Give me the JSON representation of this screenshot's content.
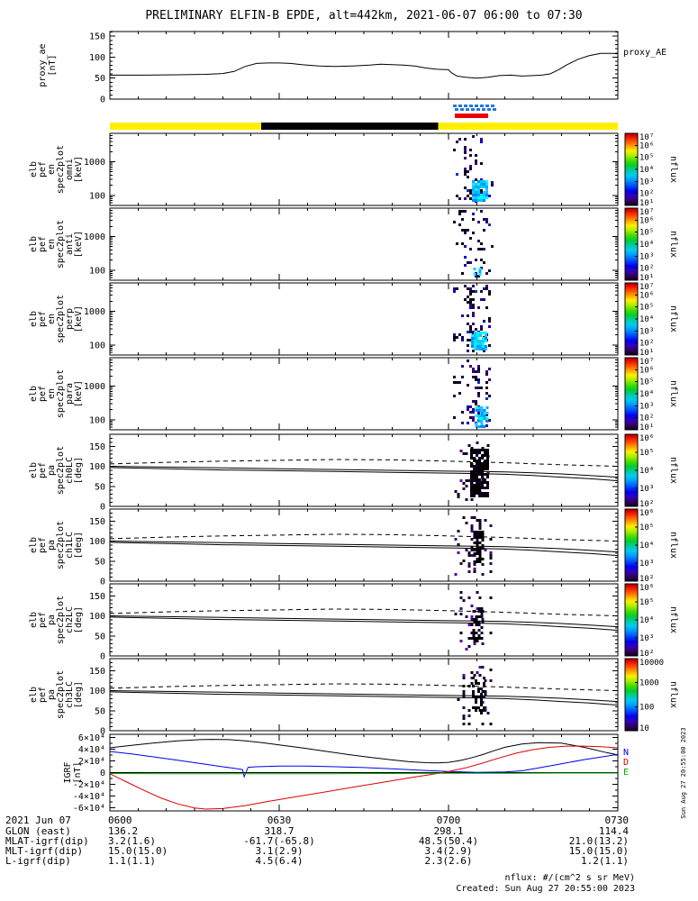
{
  "title": "PRELIMINARY ELFIN-B EPDE, alt=442km, 2021-06-07 06:00 to 07:30",
  "footer": {
    "nflux_units": "nflux: #/(cm^2 s sr MeV)",
    "created": "Created: Sun Aug 27 20:55:00 2023",
    "side_timestamp": "Sun Aug 27 20:55:00 2023"
  },
  "time_axis": {
    "total_minutes": 90,
    "minor_step_minutes": 5,
    "tick_minutes": [
      0,
      30,
      60,
      90
    ],
    "tick_labels": [
      "0600",
      "0630",
      "0700",
      "0730"
    ]
  },
  "bottom_table": {
    "row_labels": [
      "2021 Jun 07",
      "GLON (east)",
      "MLAT-igrf(dip)",
      "MLT-igrf(dip)",
      "L-igrf(dip)"
    ],
    "rows": [
      [
        "0600",
        "0630",
        "0700",
        "0730"
      ],
      [
        "136.2",
        "318.7",
        "298.1",
        "114.4"
      ],
      [
        "3.2(1.6)",
        "-61.7(-65.8)",
        "48.5(50.4)",
        "21.0(13.2)"
      ],
      [
        "15.0(15.0)",
        "3.1(2.9)",
        "3.4(2.9)",
        "15.0(15.0)"
      ],
      [
        "1.1(1.1)",
        "4.5(6.4)",
        "2.3(2.6)",
        "1.2(1.1)"
      ]
    ]
  },
  "chart_data": {
    "type": "multi-panel time-series and spectrogram stack (satellite particle data)",
    "palettes": {
      "spec_dark": [
        "#000000",
        "#16003a",
        "#24005c",
        "#32007e",
        "#0d0024",
        "#000030",
        "#3a0070",
        "#1c0048"
      ],
      "spec_blue": [
        "#0000cc",
        "#2200aa",
        "#0033bb"
      ],
      "spec_bright": [
        "#00ccff",
        "#00aaff",
        "#0088ff",
        "#00eeff",
        "#00ffee",
        "#33bbff"
      ],
      "pa_dark": [
        "#000000",
        "#0a0018",
        "#140030",
        "#1e0040",
        "#280055",
        "#000000",
        "#10002a"
      ],
      "pa_purple": [
        "#44008a",
        "#5a00aa",
        "#6600bb"
      ]
    },
    "proxy_panel": {
      "type": "line",
      "ylabel_lines": [
        "proxy_ae",
        "[nT]"
      ],
      "right_label": "proxy_AE",
      "ylim": [
        0,
        161
      ],
      "yticks": [
        0,
        50,
        100,
        150
      ],
      "series": {
        "x_min": [
          0,
          6,
          12,
          17,
          20,
          22,
          24,
          26,
          28,
          30,
          32,
          34,
          37,
          40,
          43,
          46,
          48,
          50,
          52,
          54,
          56,
          58,
          60,
          60.5,
          61.5,
          63,
          65,
          67,
          69,
          71,
          73,
          75,
          76.5,
          78,
          79.5,
          81,
          83,
          85,
          87,
          89,
          90
        ],
        "y_nT": [
          57,
          57,
          58,
          59,
          61,
          66,
          78,
          85,
          86,
          86,
          85,
          82,
          79,
          78,
          79,
          81,
          83,
          82,
          81,
          79,
          74,
          71,
          70,
          63,
          55,
          52,
          50,
          52,
          56,
          57,
          55,
          56,
          57,
          60,
          70,
          82,
          95,
          104,
          109,
          109,
          108
        ]
      }
    },
    "marker_bars": {
      "colors": {
        "yellow": "#ffee00",
        "black": "#000000",
        "red": "#ee0000",
        "blue": "#2277dd"
      },
      "science_zone_blue": {
        "x_min": [
          60.8,
          68.0
        ]
      },
      "red_bar": {
        "x_min": [
          61.1,
          67.0
        ]
      },
      "position_bar": {
        "yellow_x_min": [
          0,
          90
        ],
        "black_x_min": [
          26.8,
          58.2
        ]
      }
    },
    "energy_spectrograms": [
      {
        "id": "omni",
        "label_lines": [
          "elb",
          "pef",
          "en",
          "spec2plot",
          "omni",
          "[keV]"
        ],
        "yscale": "log",
        "ylim_keV": [
          50,
          7000
        ],
        "ytick_values": [
          100,
          1000
        ],
        "colorbar": {
          "labels": [
            "10^7",
            "10^6",
            "10^5",
            "10^4",
            "10^3",
            "10^2",
            "10^1"
          ],
          "unit": "nflux"
        },
        "burst": {
          "x_min": [
            60.8,
            67.8
          ],
          "seed": 11,
          "density": 0.45,
          "bright": {
            "center_min": 65.4,
            "half": 8,
            "from": 28,
            "to": 5,
            "density": 0.85
          }
        }
      },
      {
        "id": "anti",
        "label_lines": [
          "elb",
          "pef",
          "en",
          "spec2plot",
          "anti",
          "[keV]"
        ],
        "yscale": "log",
        "ylim_keV": [
          50,
          7000
        ],
        "ytick_values": [
          100,
          1000
        ],
        "colorbar": {
          "labels": [
            "10^7",
            "10^6",
            "10^5",
            "10^4",
            "10^3",
            "10^2",
            "10^1"
          ],
          "unit": "nflux"
        },
        "burst": {
          "x_min": [
            60.8,
            67.8
          ],
          "seed": 12,
          "density": 0.28,
          "bright": {
            "center_min": 65.0,
            "half": 4,
            "from": 14,
            "to": 5,
            "density": 0.4
          }
        }
      },
      {
        "id": "perp",
        "label_lines": [
          "elb",
          "pef",
          "en",
          "spec2plot",
          "perp",
          "[keV]"
        ],
        "yscale": "log",
        "ylim_keV": [
          50,
          7000
        ],
        "ytick_values": [
          100,
          1000
        ],
        "colorbar": {
          "labels": [
            "10^7",
            "10^6",
            "10^5",
            "10^4",
            "10^3",
            "10^2",
            "10^1"
          ],
          "unit": "nflux"
        },
        "burst": {
          "x_min": [
            60.8,
            67.8
          ],
          "seed": 13,
          "density": 0.45,
          "bright": {
            "center_min": 65.4,
            "half": 9,
            "from": 26,
            "to": 5,
            "density": 0.85
          }
        }
      },
      {
        "id": "para",
        "label_lines": [
          "elb",
          "pef",
          "en",
          "spec2plot",
          "para",
          "[keV]"
        ],
        "yscale": "log",
        "ylim_keV": [
          50,
          7000
        ],
        "ytick_values": [
          100,
          1000
        ],
        "colorbar": {
          "labels": [
            "10^7",
            "10^6",
            "10^5",
            "10^4",
            "10^3",
            "10^2",
            "10^1"
          ],
          "unit": "nflux"
        },
        "burst": {
          "x_min": [
            60.8,
            67.8
          ],
          "seed": 14,
          "density": 0.4,
          "bright": {
            "center_min": 65.8,
            "half": 7,
            "from": 26,
            "to": 4,
            "density": 0.7
          }
        }
      }
    ],
    "pitch_angle_spectrograms": [
      {
        "id": "ch0LC",
        "label_lines": [
          "elb",
          "pef",
          "pa",
          "spec2plot",
          "ch0LC",
          "[deg]"
        ],
        "ylim_deg": [
          0,
          180
        ],
        "ytick_values": [
          0,
          50,
          100,
          150
        ],
        "colorbar": {
          "labels": [
            "10^6",
            "10^5",
            "10^4",
            "10^3",
            "10^2"
          ],
          "unit": "nflux"
        },
        "burst": {
          "x_min": [
            61.0,
            67.6
          ],
          "seed": 21,
          "density": 0.5,
          "core": {
            "center_min": 65.4,
            "half": 10,
            "from": 16,
            "to": 68,
            "density": 0.8
          }
        }
      },
      {
        "id": "ch1LC",
        "label_lines": [
          "elb",
          "pef",
          "pa",
          "spec2plot",
          "ch1LC",
          "[deg]"
        ],
        "ylim_deg": [
          0,
          180
        ],
        "ytick_values": [
          0,
          50,
          100,
          150
        ],
        "colorbar": {
          "labels": [
            "10^6",
            "10^5",
            "10^4",
            "10^3",
            "10^2"
          ],
          "unit": "nflux"
        },
        "burst": {
          "x_min": [
            61.0,
            67.6
          ],
          "seed": 22,
          "density": 0.4,
          "core": {
            "center_min": 65.2,
            "half": 5,
            "from": 24,
            "to": 62,
            "density": 0.65
          }
        }
      },
      {
        "id": "ch2LC",
        "label_lines": [
          "elb",
          "pef",
          "pa",
          "spec2plot",
          "ch2LC",
          "[deg]"
        ],
        "ylim_deg": [
          0,
          180
        ],
        "ytick_values": [
          0,
          50,
          100,
          150
        ],
        "colorbar": {
          "labels": [
            "10^6",
            "10^5",
            "10^4",
            "10^3",
            "10^2"
          ],
          "unit": "nflux"
        },
        "burst": {
          "x_min": [
            61.0,
            67.6
          ],
          "seed": 23,
          "density": 0.4,
          "core": {
            "center_min": 65.0,
            "half": 5,
            "from": 26,
            "to": 60,
            "density": 0.6
          }
        }
      },
      {
        "id": "ch3LC",
        "label_lines": [
          "elb",
          "pef",
          "pa",
          "spec2plot",
          "ch3LC",
          "[deg]"
        ],
        "ylim_deg": [
          0,
          180
        ],
        "ytick_values": [
          0,
          50,
          100,
          150
        ],
        "colorbar": {
          "labels": [
            "10000",
            "1000",
            "100",
            "10"
          ],
          "unit": "nflux"
        },
        "burst": {
          "x_min": [
            61.0,
            67.6
          ],
          "seed": 24,
          "density": 0.45,
          "core": {
            "center_min": 65.3,
            "half": 7,
            "from": 20,
            "to": 62,
            "density": 0.45
          }
        }
      }
    ],
    "pitch_angle_lines": {
      "solid_upper": {
        "x": [
          0,
          10,
          20,
          30,
          40,
          50,
          60,
          65,
          70,
          75,
          80,
          85,
          90
        ],
        "y": [
          100,
          98,
          96,
          94,
          92,
          90,
          88,
          87,
          86,
          84,
          81,
          77,
          73
        ]
      },
      "solid_lower": {
        "x": [
          0,
          10,
          20,
          30,
          40,
          50,
          60,
          65,
          70,
          75,
          80,
          85,
          90
        ],
        "y": [
          97,
          94,
          91,
          89,
          87,
          85,
          83,
          82,
          80,
          77,
          73,
          69,
          64
        ]
      },
      "dashed": {
        "x": [
          0,
          10,
          20,
          30,
          40,
          50,
          60,
          70,
          80,
          90
        ],
        "y": [
          106,
          110,
          113,
          115,
          117,
          116,
          113,
          109,
          104,
          100
        ]
      }
    },
    "igrf_panel": {
      "ylabel_lines": [
        "IGRF",
        "[nT]"
      ],
      "ylim": [
        -65000,
        65000
      ],
      "ytick_values": [
        -60000,
        -40000,
        -20000,
        0,
        20000,
        40000,
        60000
      ],
      "components": [
        {
          "name": "B",
          "color": "#000000",
          "x": [
            0,
            4,
            8,
            12,
            16,
            18,
            21,
            24,
            27,
            30,
            34,
            38,
            42,
            46,
            50,
            53,
            56,
            58,
            60,
            62,
            64,
            66,
            68,
            70,
            73,
            76,
            80,
            84,
            88,
            90
          ],
          "y": [
            42000,
            46500,
            50500,
            54000,
            56000,
            56500,
            56000,
            54000,
            51000,
            47000,
            42000,
            36500,
            31000,
            26000,
            21500,
            18500,
            16800,
            16500,
            17500,
            20500,
            25000,
            30500,
            37000,
            43000,
            48500,
            51000,
            50000,
            43000,
            34000,
            30000
          ]
        },
        {
          "name": "N",
          "color": "#0000ee",
          "x": [
            0,
            4,
            8,
            12,
            16,
            20,
            23,
            23.5,
            23.8,
            24.5,
            26,
            30,
            35,
            40,
            45,
            50,
            55,
            60,
            65,
            70,
            73,
            76,
            80,
            84,
            88,
            90
          ],
          "y": [
            36000,
            31500,
            26500,
            21000,
            15500,
            10000,
            6000,
            5000,
            -7000,
            9000,
            10000,
            11000,
            11000,
            10000,
            8500,
            6500,
            4000,
            2000,
            500,
            1000,
            3000,
            8000,
            15000,
            22000,
            28000,
            31000
          ]
        },
        {
          "name": "D",
          "color": "#dd0000",
          "x": [
            0,
            3,
            6,
            9,
            12,
            15,
            17,
            20,
            24,
            28,
            33,
            38,
            43,
            48,
            53,
            57,
            60,
            63,
            66,
            69,
            72,
            75,
            78,
            81,
            84,
            87,
            90
          ],
          "y": [
            -2000,
            -16000,
            -30000,
            -43000,
            -53000,
            -60000,
            -62000,
            -61000,
            -56000,
            -49000,
            -41000,
            -33000,
            -25000,
            -17000,
            -9000,
            -3000,
            2000,
            8000,
            16000,
            25000,
            33000,
            39000,
            43000,
            45000,
            45000,
            44000,
            42000
          ]
        },
        {
          "name": "E",
          "color": "#00aa00",
          "x": [
            0,
            10,
            20,
            30,
            40,
            50,
            60,
            70,
            80,
            90
          ],
          "y": [
            -1500,
            -1800,
            -2000,
            -2000,
            -1800,
            -1500,
            -1200,
            -1000,
            -800,
            -700
          ]
        }
      ],
      "right_labels": [
        {
          "text": "N",
          "color": "#0000ee"
        },
        {
          "text": "D",
          "color": "#dd0000"
        },
        {
          "text": "E",
          "color": "#00aa00"
        }
      ]
    }
  }
}
